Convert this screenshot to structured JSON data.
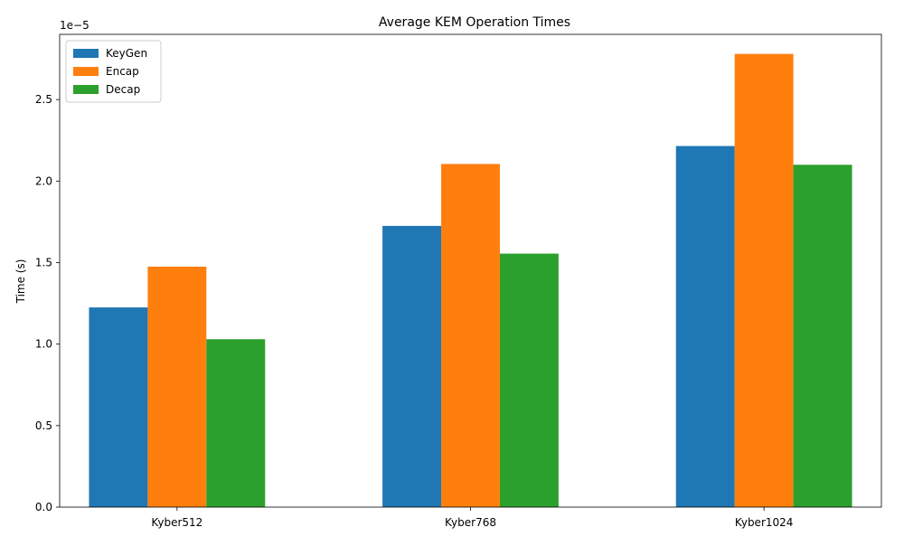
{
  "chart_data": {
    "type": "bar",
    "title": "Average KEM Operation Times",
    "xlabel": "",
    "ylabel": "Time (s)",
    "y_offset_label": "1e−5",
    "categories": [
      "Kyber512",
      "Kyber768",
      "Kyber1024"
    ],
    "series": [
      {
        "name": "KeyGen",
        "color": "#1f77b4",
        "values": [
          1.225e-05,
          1.725e-05,
          2.215e-05
        ]
      },
      {
        "name": "Encap",
        "color": "#ff7f0e",
        "values": [
          1.475e-05,
          2.105e-05,
          2.78e-05
        ]
      },
      {
        "name": "Decap",
        "color": "#2ca02c",
        "values": [
          1.03e-05,
          1.555e-05,
          2.1e-05
        ]
      }
    ],
    "ylim": [
      0,
      2.9e-05
    ],
    "yticks": [
      0,
      5e-06,
      1e-05,
      1.5e-05,
      2e-05,
      2.5e-05
    ],
    "ytick_labels": [
      "0.0",
      "0.5",
      "1.0",
      "1.5",
      "2.0",
      "2.5"
    ],
    "legend_position": "top-left",
    "grid": false
  }
}
